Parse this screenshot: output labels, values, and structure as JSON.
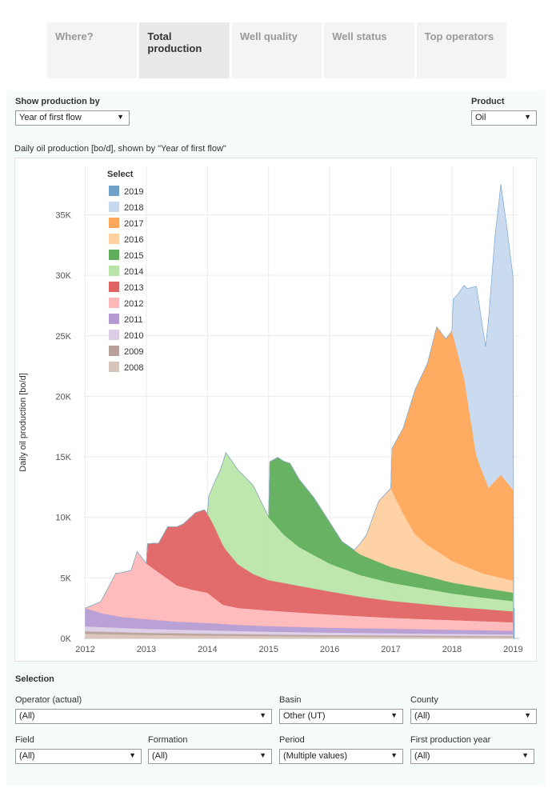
{
  "tabs": [
    {
      "label": "Where?",
      "active": false
    },
    {
      "label": "Total production",
      "active": true
    },
    {
      "label": "Well quality",
      "active": false
    },
    {
      "label": "Well status",
      "active": false
    },
    {
      "label": "Top operators",
      "active": false
    }
  ],
  "controls": {
    "show_by_label": "Show production by",
    "show_by_value": "Year of first flow",
    "product_label": "Product",
    "product_value": "Oil"
  },
  "chart_title": "Daily oil production [bo/d], shown by \"Year of first flow\"",
  "selection": {
    "heading": "Selection",
    "filters": [
      {
        "label": "Operator (actual)",
        "value": "(All)"
      },
      {
        "label": "Basin",
        "value": "Other (UT)"
      },
      {
        "label": "County",
        "value": "(All)"
      },
      {
        "label": "Field",
        "value": "(All)"
      },
      {
        "label": "Formation",
        "value": "(All)"
      },
      {
        "label": "Period",
        "value": "(Multiple values)"
      },
      {
        "label": "First production year",
        "value": "(All)"
      }
    ]
  },
  "chart_data": {
    "type": "area",
    "stacked": true,
    "ylabel": "Daily oil production [bo/d]",
    "xlabel": "",
    "x_ticks": [
      "2012",
      "2013",
      "2014",
      "2015",
      "2016",
      "2017",
      "2018",
      "2019"
    ],
    "y_ticks": [
      "0K",
      "5K",
      "10K",
      "15K",
      "20K",
      "25K",
      "30K",
      "35K"
    ],
    "ylim": [
      0,
      39000
    ],
    "xlim": [
      2011.98,
      2019.1
    ],
    "grid": true,
    "legend": {
      "title": "Select",
      "position": "top-left"
    },
    "series": [
      {
        "name": "2008",
        "color": "#d7c4bb",
        "points": [
          [
            2012,
            400
          ],
          [
            2013,
            300
          ],
          [
            2014,
            250
          ],
          [
            2015,
            200
          ],
          [
            2016,
            170
          ],
          [
            2017,
            150
          ],
          [
            2018,
            130
          ],
          [
            2019,
            110
          ]
        ]
      },
      {
        "name": "2009",
        "color": "#b9a09a",
        "points": [
          [
            2012,
            200
          ],
          [
            2013,
            170
          ],
          [
            2014,
            150
          ],
          [
            2015,
            130
          ],
          [
            2016,
            110
          ],
          [
            2017,
            100
          ],
          [
            2018,
            90
          ],
          [
            2019,
            80
          ]
        ]
      },
      {
        "name": "2010",
        "color": "#dccde6",
        "points": [
          [
            2012,
            400
          ],
          [
            2013,
            330
          ],
          [
            2014,
            280
          ],
          [
            2015,
            240
          ],
          [
            2016,
            210
          ],
          [
            2017,
            190
          ],
          [
            2018,
            170
          ],
          [
            2019,
            150
          ]
        ]
      },
      {
        "name": "2011",
        "color": "#b59bd3",
        "points": [
          [
            2012,
            1500
          ],
          [
            2012.3,
            1100
          ],
          [
            2012.6,
            900
          ],
          [
            2013,
            800
          ],
          [
            2013.5,
            650
          ],
          [
            2014,
            600
          ],
          [
            2014.5,
            500
          ],
          [
            2015,
            450
          ],
          [
            2015.5,
            420
          ],
          [
            2016,
            400
          ],
          [
            2016.5,
            380
          ],
          [
            2017,
            370
          ],
          [
            2017.5,
            350
          ],
          [
            2018,
            330
          ],
          [
            2018.5,
            320
          ],
          [
            2019,
            300
          ]
        ]
      },
      {
        "name": "2012",
        "color": "#ffb8b8",
        "points": [
          [
            2012,
            0
          ],
          [
            2012.25,
            900
          ],
          [
            2012.5,
            3500
          ],
          [
            2012.75,
            3900
          ],
          [
            2012.85,
            5500
          ],
          [
            2013,
            4600
          ],
          [
            2013.25,
            3800
          ],
          [
            2013.5,
            3000
          ],
          [
            2013.75,
            2700
          ],
          [
            2014,
            2500
          ],
          [
            2014.25,
            1600
          ],
          [
            2014.5,
            1400
          ],
          [
            2015,
            1300
          ],
          [
            2015.5,
            1200
          ],
          [
            2016,
            1100
          ],
          [
            2016.5,
            1000
          ],
          [
            2017,
            900
          ],
          [
            2017.5,
            850
          ],
          [
            2018,
            800
          ],
          [
            2018.5,
            750
          ],
          [
            2019,
            700
          ]
        ]
      },
      {
        "name": "2013",
        "color": "#e06464",
        "points": [
          [
            2012,
            0
          ],
          [
            2013,
            0
          ],
          [
            2013.02,
            1700
          ],
          [
            2013.2,
            2400
          ],
          [
            2013.35,
            4300
          ],
          [
            2013.6,
            5200
          ],
          [
            2013.8,
            6400
          ],
          [
            2013.95,
            6800
          ],
          [
            2014.1,
            6000
          ],
          [
            2014.3,
            4600
          ],
          [
            2014.5,
            3600
          ],
          [
            2014.75,
            2900
          ],
          [
            2015,
            2500
          ],
          [
            2015.5,
            2200
          ],
          [
            2016,
            1900
          ],
          [
            2016.5,
            1600
          ],
          [
            2017,
            1400
          ],
          [
            2017.5,
            1250
          ],
          [
            2018,
            1100
          ],
          [
            2018.5,
            1000
          ],
          [
            2019,
            900
          ]
        ]
      },
      {
        "name": "2014",
        "color": "#b9e6a8",
        "points": [
          [
            2012,
            0
          ],
          [
            2014,
            0
          ],
          [
            2014.02,
            1600
          ],
          [
            2014.2,
            5500
          ],
          [
            2014.3,
            8000
          ],
          [
            2014.5,
            7800
          ],
          [
            2014.75,
            7300
          ],
          [
            2015,
            5200
          ],
          [
            2015.25,
            4000
          ],
          [
            2015.5,
            3200
          ],
          [
            2016,
            2300
          ],
          [
            2016.5,
            1800
          ],
          [
            2017,
            1500
          ],
          [
            2017.5,
            1300
          ],
          [
            2018,
            1100
          ],
          [
            2018.5,
            950
          ],
          [
            2019,
            850
          ]
        ]
      },
      {
        "name": "2015",
        "color": "#5fae5b",
        "points": [
          [
            2012,
            0
          ],
          [
            2015,
            0
          ],
          [
            2015.02,
            4700
          ],
          [
            2015.15,
            5800
          ],
          [
            2015.35,
            6300
          ],
          [
            2015.5,
            5600
          ],
          [
            2015.75,
            4700
          ],
          [
            2016,
            3400
          ],
          [
            2016.2,
            2200
          ],
          [
            2016.5,
            1700
          ],
          [
            2017,
            1300
          ],
          [
            2017.5,
            1100
          ],
          [
            2018,
            900
          ],
          [
            2018.5,
            800
          ],
          [
            2019,
            700
          ]
        ]
      },
      {
        "name": "2016",
        "color": "#ffd0a0",
        "points": [
          [
            2012,
            0
          ],
          [
            2016.4,
            0
          ],
          [
            2016.6,
            1800
          ],
          [
            2016.8,
            5000
          ],
          [
            2017,
            6500
          ],
          [
            2017.2,
            4700
          ],
          [
            2017.4,
            3200
          ],
          [
            2017.6,
            2600
          ],
          [
            2018,
            1800
          ],
          [
            2018.5,
            1200
          ],
          [
            2019,
            1000
          ]
        ]
      },
      {
        "name": "2017",
        "color": "#ffa75a",
        "points": [
          [
            2012,
            0
          ],
          [
            2017,
            0
          ],
          [
            2017.02,
            3500
          ],
          [
            2017.2,
            7000
          ],
          [
            2017.4,
            12000
          ],
          [
            2017.6,
            15000
          ],
          [
            2017.75,
            18500
          ],
          [
            2017.9,
            18000
          ],
          [
            2018,
            19000
          ],
          [
            2018.2,
            15500
          ],
          [
            2018.4,
            9500
          ],
          [
            2018.6,
            7200
          ],
          [
            2018.8,
            8500
          ],
          [
            2019,
            7500
          ]
        ]
      },
      {
        "name": "2018",
        "color": "#c7d9ef",
        "points": [
          [
            2012,
            0
          ],
          [
            2018,
            0
          ],
          [
            2018.02,
            3000
          ],
          [
            2018.1,
            5000
          ],
          [
            2018.25,
            9000
          ],
          [
            2018.4,
            14000
          ],
          [
            2018.55,
            11000
          ],
          [
            2018.7,
            20000
          ],
          [
            2018.8,
            24000
          ],
          [
            2018.9,
            21000
          ],
          [
            2019,
            17500
          ]
        ]
      },
      {
        "name": "2019",
        "color": "#6fa1c9",
        "points": [
          [
            2012,
            0
          ],
          [
            2019,
            0
          ],
          [
            2019.01,
            2000
          ],
          [
            2019.02,
            2500
          ]
        ]
      }
    ]
  }
}
